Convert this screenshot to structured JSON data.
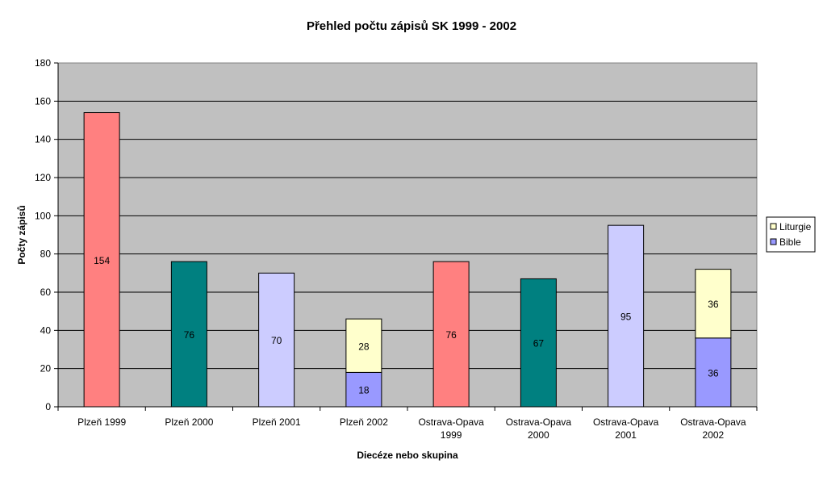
{
  "chart_data": {
    "type": "bar",
    "title": "Přehled počtu zápisů SK 1999 - 2002",
    "xlabel": "Diecéze nebo skupina",
    "ylabel": "Počty zápisů",
    "ylim": [
      0,
      180
    ],
    "yticks": [
      0,
      20,
      40,
      60,
      80,
      100,
      120,
      140,
      160,
      180
    ],
    "grid": true,
    "plot_background": "#C0C0C0",
    "categories": [
      [
        "Plzeň 1999"
      ],
      [
        "Plzeň 2000"
      ],
      [
        "Plzeň 2001"
      ],
      [
        "Plzeň 2002"
      ],
      [
        "Ostrava-Opava",
        "1999"
      ],
      [
        "Ostrava-Opava",
        "2000"
      ],
      [
        "Ostrava-Opava",
        "2001"
      ],
      [
        "Ostrava-Opava",
        "2002"
      ]
    ],
    "bars": [
      {
        "segments": [
          {
            "value": 154,
            "color": "#FF8080"
          }
        ]
      },
      {
        "segments": [
          {
            "value": 76,
            "color": "#008080"
          }
        ]
      },
      {
        "segments": [
          {
            "value": 70,
            "color": "#CCCCFF"
          }
        ]
      },
      {
        "segments": [
          {
            "series": "Bible",
            "value": 18,
            "color": "#9999FF"
          },
          {
            "series": "Liturgie",
            "value": 28,
            "color": "#FFFFCC"
          }
        ]
      },
      {
        "segments": [
          {
            "value": 76,
            "color": "#FF8080"
          }
        ]
      },
      {
        "segments": [
          {
            "value": 67,
            "color": "#008080"
          }
        ]
      },
      {
        "segments": [
          {
            "value": 95,
            "color": "#CCCCFF"
          }
        ]
      },
      {
        "segments": [
          {
            "series": "Bible",
            "value": 36,
            "color": "#9999FF"
          },
          {
            "series": "Liturgie",
            "value": 36,
            "color": "#FFFFCC"
          }
        ]
      }
    ],
    "legend": {
      "position": "right",
      "items": [
        {
          "name": "Liturgie",
          "color": "#FFFFCC"
        },
        {
          "name": "Bible",
          "color": "#9999FF"
        }
      ]
    }
  }
}
